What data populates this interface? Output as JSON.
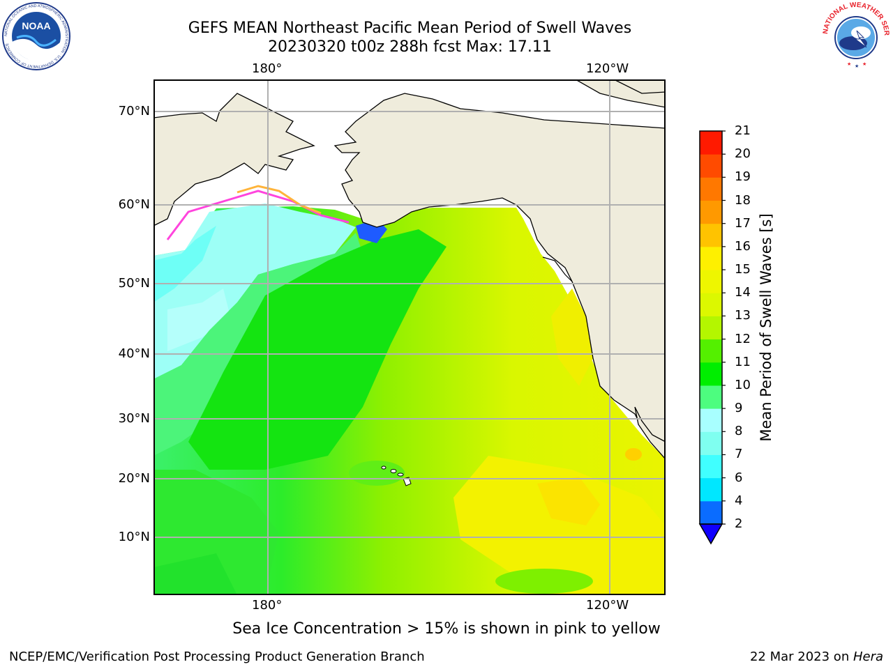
{
  "title": {
    "line1": "GEFS MEAN Northeast Pacific Mean Period of Swell Waves",
    "line2": "20230320 t00z 288h fcst   Max: 17.11"
  },
  "logos": {
    "left": "noaa-logo",
    "left_text": "NOAA",
    "left_ring": "NATIONAL OCEANIC AND ATMOSPHERIC ADMINISTRATION · U.S. DEPARTMENT OF COMMERCE",
    "right": "nws-logo",
    "right_ring": "NATIONAL WEATHER SERVICE"
  },
  "map": {
    "lon_labels_top": [
      "180°",
      "120°W"
    ],
    "lon_labels_bottom": [
      "180°",
      "120°W"
    ],
    "lat_labels": [
      "70°N",
      "60°N",
      "50°N",
      "40°N",
      "30°N",
      "20°N",
      "10°N"
    ],
    "land_color": "#efecdc",
    "grid_color": "#b0b0b0"
  },
  "colorbar": {
    "title": "Mean Period of Swell Waves [s]",
    "ticks": [
      "2",
      "4",
      "6",
      "7",
      "8",
      "9",
      "10",
      "11",
      "12",
      "13",
      "14",
      "15",
      "16",
      "17",
      "18",
      "19",
      "20",
      "21"
    ],
    "display_ticks": [
      "21",
      "20",
      "19",
      "18",
      "17",
      "16",
      "15",
      "14",
      "13",
      "12",
      "11",
      "10",
      "9",
      "8",
      "7",
      "6",
      "4",
      "2"
    ],
    "colors_bottom_to_top": [
      "#0a6cff",
      "#00e7ff",
      "#40ffff",
      "#7ffff0",
      "#a8ffff",
      "#4dfd7f",
      "#00ee00",
      "#54f000",
      "#b4f600",
      "#dcf800",
      "#eef600",
      "#fef000",
      "#ffc300",
      "#ff9900",
      "#ff7800",
      "#ff4b00",
      "#ff1a00"
    ],
    "under_color": "#1000ff"
  },
  "caption": "Sea Ice Concentration > 15% is shown in pink to yellow",
  "footer": {
    "left": "NCEP/EMC/Verification Post Processing Product Generation Branch",
    "right_date": "22 Mar 2023 on ",
    "right_host": "Hera"
  }
}
